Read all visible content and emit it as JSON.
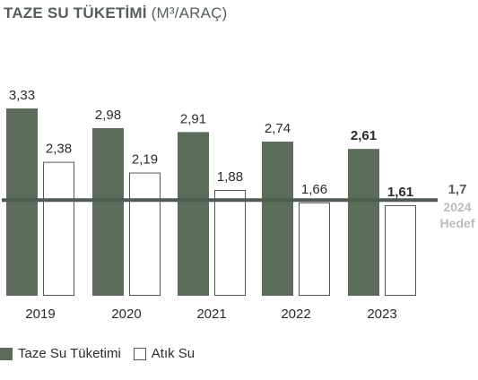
{
  "header": {
    "title": "TAZE SU TÜKETİMİ",
    "unit": "(M³/ARAÇ)"
  },
  "colors": {
    "fresh_fill": "#5b6c5b",
    "waste_fill": "#ffffff",
    "waste_stroke": "#555555",
    "target_line": "#4f5a50",
    "target_sub_text": "#b9bdb9"
  },
  "chart_data": {
    "type": "bar",
    "title": "TAZE SU TÜKETİMİ (M³/ARAÇ)",
    "categories": [
      "2019",
      "2020",
      "2021",
      "2022",
      "2023"
    ],
    "series": [
      {
        "name": "Taze Su Tüketimi",
        "values": [
          3.33,
          2.98,
          2.91,
          2.74,
          2.61
        ],
        "labels": [
          "3,33",
          "2,98",
          "2,91",
          "2,74",
          "2,61"
        ]
      },
      {
        "name": "Atık Su",
        "values": [
          2.38,
          2.19,
          1.88,
          1.66,
          1.61
        ],
        "labels": [
          "2,38",
          "2,19",
          "1,88",
          "1,66",
          "1,61"
        ]
      }
    ],
    "bold_label_category": "2023",
    "target": {
      "value": 1.7,
      "label": "1,7",
      "year_text": "2024",
      "caption": "Hedef"
    },
    "ylim": [
      0,
      3.33
    ],
    "grid": false,
    "legend_position": "bottom-left"
  },
  "legend": {
    "items": [
      {
        "label": "Taze Su Tüketimi"
      },
      {
        "label": "Atık Su"
      }
    ]
  }
}
